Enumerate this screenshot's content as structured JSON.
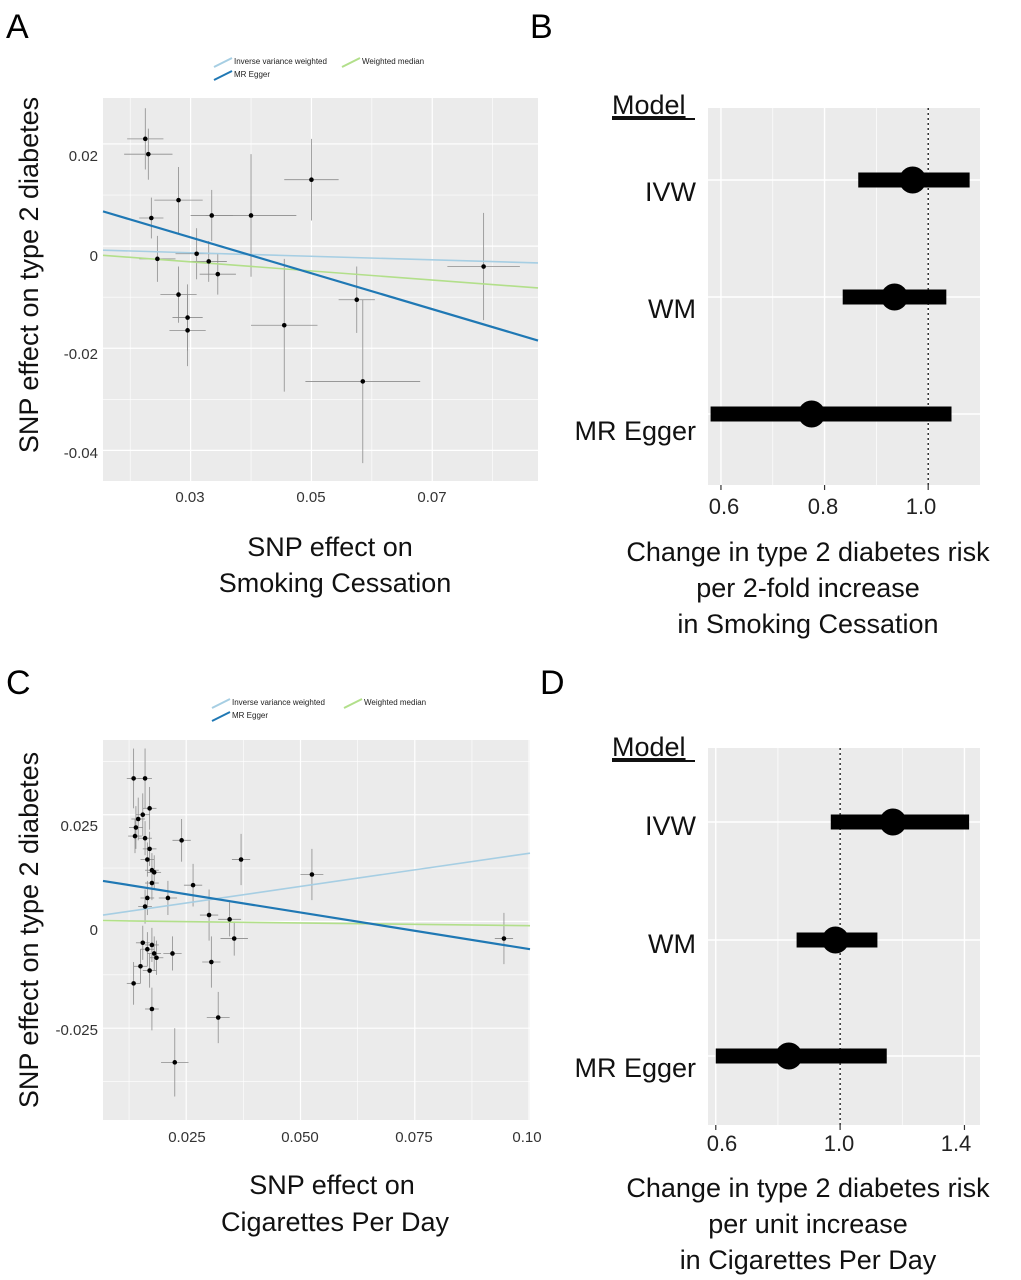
{
  "panels": {
    "A": {
      "letter": "A",
      "legend": {
        "ivw": "Inverse variance weighted",
        "wm": "Weighted median",
        "egger": "MR Egger"
      },
      "xlabel_lines": [
        "SNP effect on",
        "Smoking Cessation"
      ],
      "ylabel": "SNP effect on type 2 diabetes",
      "xticks": [
        "0.03",
        "0.05",
        "0.07"
      ],
      "yticks": [
        "0.02",
        "0",
        "-0.02",
        "-0.04"
      ]
    },
    "B": {
      "letter": "B",
      "model_header": "Model",
      "models": [
        "IVW",
        "WM",
        "MR Egger"
      ],
      "xticks": [
        "0.6",
        "0.8",
        "1.0"
      ],
      "xlabel_lines": [
        "Change in type 2 diabetes risk",
        "per 2-fold increase",
        "in Smoking Cessation"
      ]
    },
    "C": {
      "letter": "C",
      "legend": {
        "ivw": "Inverse variance weighted",
        "wm": "Weighted median",
        "egger": "MR Egger"
      },
      "xlabel_lines": [
        "SNP effect on",
        "Cigarettes Per Day"
      ],
      "ylabel": "SNP effect on type 2 diabetes",
      "xticks": [
        "0.025",
        "0.050",
        "0.075",
        "0.10"
      ],
      "yticks": [
        "0.025",
        "0",
        "-0.025"
      ]
    },
    "D": {
      "letter": "D",
      "model_header": "Model",
      "models": [
        "IVW",
        "WM",
        "MR Egger"
      ],
      "xticks": [
        "0.6",
        "1.0",
        "1.4"
      ],
      "xlabel_lines": [
        "Change in type 2 diabetes risk",
        "per unit increase",
        "in Cigarettes Per Day"
      ]
    }
  },
  "colors": {
    "panel_bg": "#ebebeb",
    "grid": "#ffffff",
    "ivw_line": "#a6cee3",
    "wm_line": "#b2df8a",
    "egger_line": "#1f78b4",
    "points": "#000000",
    "errorbars": "#8c8c8c"
  },
  "chart_data": [
    {
      "panel": "A",
      "type": "scatter",
      "xlabel": "SNP effect on Smoking Cessation",
      "ylabel": "SNP effect on type 2 diabetes",
      "xlim": [
        0.0155,
        0.0875
      ],
      "ylim": [
        -0.046,
        0.029
      ],
      "xticks": [
        0.03,
        0.05,
        0.07
      ],
      "yticks": [
        0.02,
        0,
        -0.02,
        -0.04
      ],
      "points": [
        {
          "x": 0.0225,
          "y": 0.021,
          "xerr": 0.003,
          "yerr": 0.006
        },
        {
          "x": 0.023,
          "y": 0.018,
          "xerr": 0.004,
          "yerr": 0.005
        },
        {
          "x": 0.0235,
          "y": 0.0055,
          "xerr": 0.002,
          "yerr": 0.004
        },
        {
          "x": 0.0245,
          "y": -0.0025,
          "xerr": 0.003,
          "yerr": 0.0045
        },
        {
          "x": 0.028,
          "y": 0.009,
          "xerr": 0.004,
          "yerr": 0.0065
        },
        {
          "x": 0.028,
          "y": -0.0095,
          "xerr": 0.003,
          "yerr": 0.0055
        },
        {
          "x": 0.0295,
          "y": -0.014,
          "xerr": 0.0025,
          "yerr": 0.0065
        },
        {
          "x": 0.0295,
          "y": -0.0165,
          "xerr": 0.003,
          "yerr": 0.007
        },
        {
          "x": 0.031,
          "y": -0.0015,
          "xerr": 0.0035,
          "yerr": 0.005
        },
        {
          "x": 0.033,
          "y": -0.003,
          "xerr": 0.003,
          "yerr": 0.004
        },
        {
          "x": 0.0335,
          "y": 0.006,
          "xerr": 0.0035,
          "yerr": 0.005
        },
        {
          "x": 0.0345,
          "y": -0.0055,
          "xerr": 0.003,
          "yerr": 0.004
        },
        {
          "x": 0.04,
          "y": 0.006,
          "xerr": 0.0075,
          "yerr": 0.012
        },
        {
          "x": 0.0455,
          "y": -0.0155,
          "xerr": 0.0055,
          "yerr": 0.013
        },
        {
          "x": 0.05,
          "y": 0.013,
          "xerr": 0.0045,
          "yerr": 0.008
        },
        {
          "x": 0.0575,
          "y": -0.0105,
          "xerr": 0.003,
          "yerr": 0.0065
        },
        {
          "x": 0.0585,
          "y": -0.0265,
          "xerr": 0.0095,
          "yerr": 0.016
        },
        {
          "x": 0.0785,
          "y": -0.004,
          "xerr": 0.006,
          "yerr": 0.0105
        }
      ],
      "lines": [
        {
          "name": "Inverse variance weighted",
          "x": [
            0.0155,
            0.0875
          ],
          "y": [
            -0.0008,
            -0.0033
          ]
        },
        {
          "name": "Weighted median",
          "x": [
            0.0155,
            0.0875
          ],
          "y": [
            -0.0018,
            -0.0082
          ]
        },
        {
          "name": "MR Egger",
          "x": [
            0.0155,
            0.0875
          ],
          "y": [
            0.0068,
            -0.0185
          ]
        }
      ]
    },
    {
      "panel": "B",
      "type": "forest",
      "xlim": [
        0.575,
        1.1
      ],
      "xticks": [
        0.6,
        0.8,
        1.0
      ],
      "reference": 1.0,
      "xlabel": "Change in type 2 diabetes risk per 2-fold increase in Smoking Cessation",
      "categories": [
        "IVW",
        "WM",
        "MR Egger"
      ],
      "estimates": [
        0.97,
        0.935,
        0.775
      ],
      "lower": [
        0.865,
        0.835,
        0.58
      ],
      "upper": [
        1.08,
        1.035,
        1.045
      ]
    },
    {
      "panel": "C",
      "type": "scatter",
      "xlabel": "SNP effect on Cigarettes Per Day",
      "ylabel": "SNP effect on type 2 diabetes",
      "xlim": [
        0.0068,
        0.1002
      ],
      "ylim": [
        -0.0465,
        0.0425
      ],
      "xticks": [
        0.025,
        0.05,
        0.075,
        0.1
      ],
      "yticks": [
        0.025,
        0,
        -0.025
      ],
      "points": [
        {
          "x": 0.0135,
          "y": 0.0335,
          "xerr": 0.0015,
          "yerr": 0.007
        },
        {
          "x": 0.0145,
          "y": 0.024,
          "xerr": 0.0015,
          "yerr": 0.005
        },
        {
          "x": 0.014,
          "y": 0.022,
          "xerr": 0.0015,
          "yerr": 0.005
        },
        {
          "x": 0.0138,
          "y": 0.02,
          "xerr": 0.0015,
          "yerr": 0.004
        },
        {
          "x": 0.0155,
          "y": 0.025,
          "xerr": 0.0015,
          "yerr": 0.005
        },
        {
          "x": 0.016,
          "y": 0.0335,
          "xerr": 0.0015,
          "yerr": 0.007
        },
        {
          "x": 0.016,
          "y": 0.0195,
          "xerr": 0.0015,
          "yerr": 0.004
        },
        {
          "x": 0.017,
          "y": 0.0265,
          "xerr": 0.0015,
          "yerr": 0.005
        },
        {
          "x": 0.017,
          "y": 0.017,
          "xerr": 0.0015,
          "yerr": 0.004
        },
        {
          "x": 0.0165,
          "y": 0.0145,
          "xerr": 0.0015,
          "yerr": 0.004
        },
        {
          "x": 0.0175,
          "y": 0.012,
          "xerr": 0.0015,
          "yerr": 0.004
        },
        {
          "x": 0.018,
          "y": 0.0115,
          "xerr": 0.0015,
          "yerr": 0.004
        },
        {
          "x": 0.0175,
          "y": 0.009,
          "xerr": 0.0015,
          "yerr": 0.004
        },
        {
          "x": 0.0165,
          "y": 0.0055,
          "xerr": 0.0015,
          "yerr": 0.004
        },
        {
          "x": 0.016,
          "y": 0.0035,
          "xerr": 0.0015,
          "yerr": 0.004
        },
        {
          "x": 0.0155,
          "y": -0.005,
          "xerr": 0.0015,
          "yerr": 0.004
        },
        {
          "x": 0.015,
          "y": -0.0105,
          "xerr": 0.0015,
          "yerr": 0.004
        },
        {
          "x": 0.0135,
          "y": -0.0145,
          "xerr": 0.0015,
          "yerr": 0.005
        },
        {
          "x": 0.017,
          "y": -0.0115,
          "xerr": 0.0015,
          "yerr": 0.004
        },
        {
          "x": 0.0165,
          "y": -0.0065,
          "xerr": 0.0015,
          "yerr": 0.004
        },
        {
          "x": 0.0175,
          "y": -0.0055,
          "xerr": 0.0015,
          "yerr": 0.004
        },
        {
          "x": 0.018,
          "y": -0.0075,
          "xerr": 0.0015,
          "yerr": 0.004
        },
        {
          "x": 0.0185,
          "y": -0.0085,
          "xerr": 0.0015,
          "yerr": 0.004
        },
        {
          "x": 0.0175,
          "y": -0.0205,
          "xerr": 0.0015,
          "yerr": 0.005
        },
        {
          "x": 0.021,
          "y": 0.0055,
          "xerr": 0.002,
          "yerr": 0.004
        },
        {
          "x": 0.022,
          "y": -0.0075,
          "xerr": 0.002,
          "yerr": 0.004
        },
        {
          "x": 0.0225,
          "y": -0.033,
          "xerr": 0.003,
          "yerr": 0.008
        },
        {
          "x": 0.024,
          "y": 0.019,
          "xerr": 0.002,
          "yerr": 0.005
        },
        {
          "x": 0.0265,
          "y": 0.0085,
          "xerr": 0.002,
          "yerr": 0.005
        },
        {
          "x": 0.03,
          "y": 0.0015,
          "xerr": 0.002,
          "yerr": 0.006
        },
        {
          "x": 0.0305,
          "y": -0.0095,
          "xerr": 0.002,
          "yerr": 0.006
        },
        {
          "x": 0.032,
          "y": -0.0225,
          "xerr": 0.0025,
          "yerr": 0.006
        },
        {
          "x": 0.0345,
          "y": 0.0005,
          "xerr": 0.0025,
          "yerr": 0.004
        },
        {
          "x": 0.0355,
          "y": -0.004,
          "xerr": 0.003,
          "yerr": 0.004
        },
        {
          "x": 0.037,
          "y": 0.0145,
          "xerr": 0.002,
          "yerr": 0.006
        },
        {
          "x": 0.0525,
          "y": 0.011,
          "xerr": 0.0025,
          "yerr": 0.006
        },
        {
          "x": 0.0945,
          "y": -0.004,
          "xerr": 0.002,
          "yerr": 0.006
        }
      ],
      "lines": [
        {
          "name": "Inverse variance weighted",
          "x": [
            0.0068,
            0.1002
          ],
          "y": [
            0.0015,
            0.016
          ]
        },
        {
          "name": "Weighted median",
          "x": [
            0.0068,
            0.1002
          ],
          "y": [
            0.0002,
            -0.001
          ]
        },
        {
          "name": "MR Egger",
          "x": [
            0.0068,
            0.1002
          ],
          "y": [
            0.0095,
            -0.0065
          ]
        }
      ]
    },
    {
      "panel": "D",
      "type": "forest",
      "xlim": [
        0.575,
        1.45
      ],
      "xticks": [
        0.6,
        1.0,
        1.4
      ],
      "reference": 1.0,
      "xlabel": "Change in type 2 diabetes risk per unit increase in Cigarettes Per Day",
      "categories": [
        "IVW",
        "WM",
        "MR Egger"
      ],
      "estimates": [
        1.17,
        0.985,
        0.835
      ],
      "lower": [
        0.97,
        0.86,
        0.6
      ],
      "upper": [
        1.415,
        1.12,
        1.15
      ]
    }
  ]
}
